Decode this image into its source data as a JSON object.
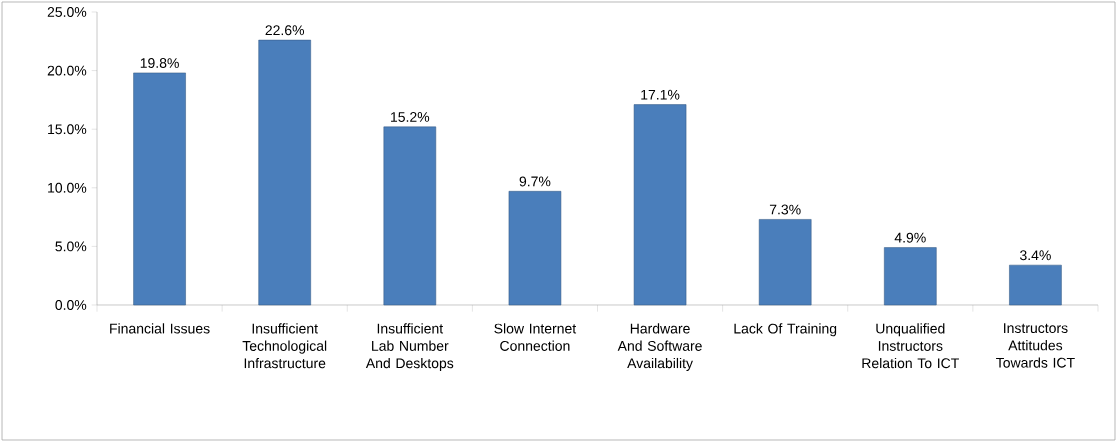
{
  "chart_data": {
    "type": "bar",
    "categories": [
      "Financial Issues",
      "Insufficient Technological Infrastructure",
      "Insufficient Lab Number And Desktops",
      "Slow Internet Connection",
      "Hardware And Software Availability",
      "Lack Of Training",
      "Unqualified Instructors Relation  To ICT",
      "Instructors Attitudes Towards ICT"
    ],
    "values": [
      19.8,
      22.6,
      15.2,
      9.7,
      17.1,
      7.3,
      4.9,
      3.4
    ],
    "value_labels": [
      "19.8%",
      "22.6%",
      "15.2%",
      "9.7%",
      "17.1%",
      "7.3%",
      "4.9%",
      "3.4%"
    ],
    "color": "#4a7ebb",
    "ylim": [
      0,
      25
    ],
    "yticks": [
      {
        "value": 0,
        "label": "0.0%"
      },
      {
        "value": 5,
        "label": "5.0%"
      },
      {
        "value": 10,
        "label": "10.0%"
      },
      {
        "value": 15,
        "label": "15.0%"
      },
      {
        "value": 20,
        "label": "20.0%"
      },
      {
        "value": 25,
        "label": "25.0%"
      }
    ]
  }
}
